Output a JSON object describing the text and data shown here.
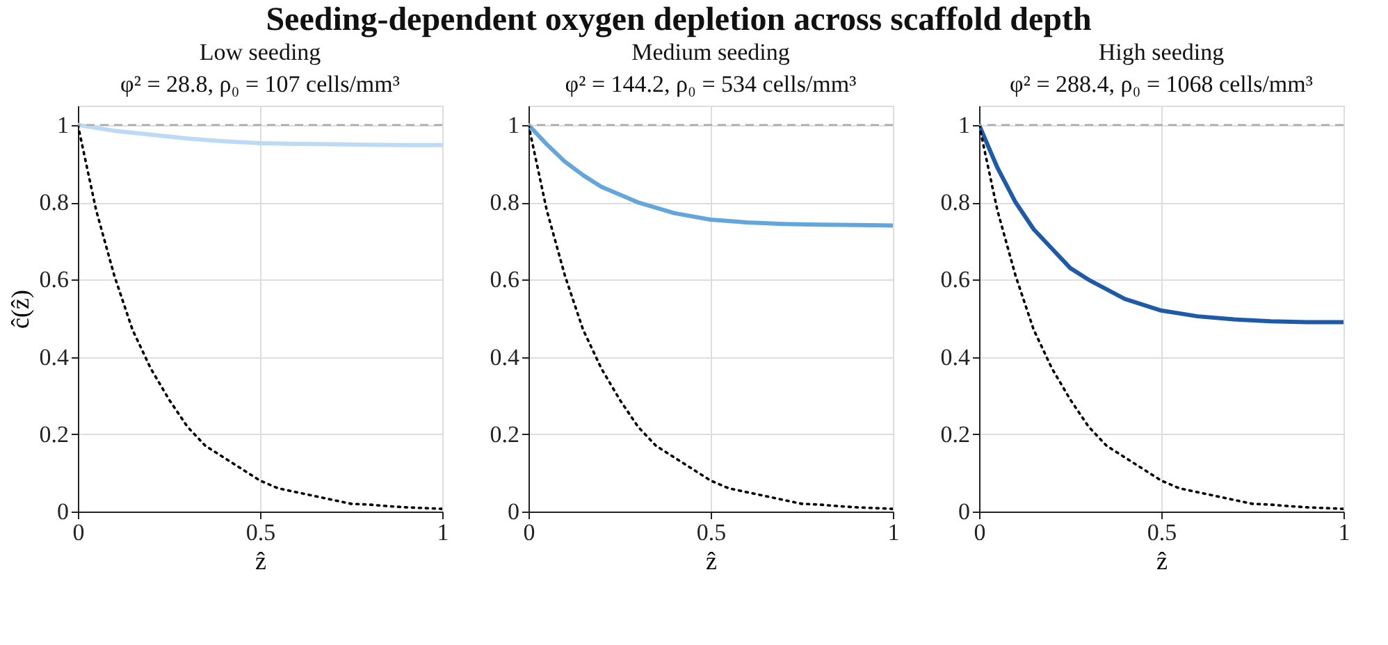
{
  "chart_data": [
    {
      "type": "line",
      "title": "Low seeding",
      "subtitle": "φ² = 28.8, ρ₀ = 107 cells/mm³",
      "xlabel": "ẑ",
      "ylabel": "ĉ(ẑ)",
      "annotations": [
        "Seeding-dependent oxygen depletion across scaffold depth"
      ],
      "xlim": [
        0,
        1
      ],
      "ylim": [
        0,
        1.05
      ],
      "xticks": [
        0,
        0.5,
        1
      ],
      "yticks": [
        0,
        0.2,
        0.4,
        0.6,
        0.8,
        1
      ],
      "grid": true,
      "ref_lines": [
        {
          "axis": "y",
          "value": 1,
          "label": null,
          "color": "#aaaaaa",
          "line_style": "dashed"
        }
      ],
      "series": [
        {
          "color": "#bcdaf5",
          "line_style": "solid",
          "x": [
            0,
            0.1,
            0.2,
            0.3,
            0.4,
            0.5,
            0.6,
            0.7,
            0.8,
            0.9,
            1
          ],
          "values": [
            1,
            0.985,
            0.975,
            0.965,
            0.958,
            0.953,
            0.951,
            0.95,
            0.949,
            0.948,
            0.948
          ]
        },
        {
          "color": "#000000",
          "line_style": "dotted",
          "x": [
            0,
            0.05,
            0.1,
            0.15,
            0.2,
            0.25,
            0.3,
            0.35,
            0.4,
            0.45,
            0.5,
            0.55,
            0.6,
            0.65,
            0.7,
            0.75,
            0.8,
            0.85,
            0.9,
            0.95,
            1
          ],
          "values": [
            1,
            0.78,
            0.61,
            0.47,
            0.37,
            0.29,
            0.22,
            0.17,
            0.14,
            0.11,
            0.08,
            0.06,
            0.05,
            0.04,
            0.03,
            0.02,
            0.018,
            0.014,
            0.011,
            0.009,
            0.007
          ]
        }
      ]
    },
    {
      "type": "line",
      "title": "Medium seeding",
      "subtitle": "φ² = 144.2, ρ₀ = 534 cells/mm³",
      "xlabel": "ẑ",
      "xlim": [
        0,
        1
      ],
      "ylim": [
        0,
        1.05
      ],
      "xticks": [
        0,
        0.5,
        1
      ],
      "yticks": [
        0,
        0.2,
        0.4,
        0.6,
        0.8,
        1
      ],
      "grid": true,
      "ref_lines": [
        {
          "axis": "y",
          "value": 1,
          "label": null,
          "color": "#aaaaaa",
          "line_style": "dashed"
        }
      ],
      "series": [
        {
          "color": "#63a6db",
          "line_style": "solid",
          "x": [
            0,
            0.05,
            0.1,
            0.15,
            0.2,
            0.3,
            0.4,
            0.5,
            0.6,
            0.7,
            0.8,
            0.9,
            1
          ],
          "values": [
            1,
            0.95,
            0.905,
            0.87,
            0.84,
            0.8,
            0.772,
            0.755,
            0.748,
            0.744,
            0.742,
            0.741,
            0.74
          ]
        },
        {
          "color": "#000000",
          "line_style": "dotted",
          "x": [
            0,
            0.05,
            0.1,
            0.15,
            0.2,
            0.25,
            0.3,
            0.35,
            0.4,
            0.45,
            0.5,
            0.55,
            0.6,
            0.65,
            0.7,
            0.75,
            0.8,
            0.85,
            0.9,
            0.95,
            1
          ],
          "values": [
            1,
            0.78,
            0.61,
            0.47,
            0.37,
            0.29,
            0.22,
            0.17,
            0.14,
            0.11,
            0.08,
            0.06,
            0.05,
            0.04,
            0.03,
            0.02,
            0.018,
            0.014,
            0.011,
            0.009,
            0.007
          ]
        }
      ]
    },
    {
      "type": "line",
      "title": "High seeding",
      "subtitle": "φ² = 288.4, ρ₀ = 1068 cells/mm³",
      "xlabel": "ẑ",
      "xlim": [
        0,
        1
      ],
      "ylim": [
        0,
        1.05
      ],
      "xticks": [
        0,
        0.5,
        1
      ],
      "yticks": [
        0,
        0.2,
        0.4,
        0.6,
        0.8,
        1
      ],
      "grid": true,
      "ref_lines": [
        {
          "axis": "y",
          "value": 1,
          "label": null,
          "color": "#aaaaaa",
          "line_style": "dashed"
        }
      ],
      "series": [
        {
          "color": "#1f5aa8",
          "line_style": "solid",
          "x": [
            0,
            0.05,
            0.1,
            0.15,
            0.2,
            0.25,
            0.3,
            0.4,
            0.5,
            0.6,
            0.7,
            0.8,
            0.9,
            1
          ],
          "values": [
            1,
            0.89,
            0.8,
            0.73,
            0.68,
            0.63,
            0.6,
            0.55,
            0.52,
            0.505,
            0.497,
            0.492,
            0.49,
            0.49
          ]
        },
        {
          "color": "#000000",
          "line_style": "dotted",
          "x": [
            0,
            0.05,
            0.1,
            0.15,
            0.2,
            0.25,
            0.3,
            0.35,
            0.4,
            0.45,
            0.5,
            0.55,
            0.6,
            0.65,
            0.7,
            0.75,
            0.8,
            0.85,
            0.9,
            0.95,
            1
          ],
          "values": [
            1,
            0.78,
            0.61,
            0.47,
            0.37,
            0.29,
            0.22,
            0.17,
            0.14,
            0.11,
            0.08,
            0.06,
            0.05,
            0.04,
            0.03,
            0.02,
            0.018,
            0.014,
            0.011,
            0.009,
            0.007
          ]
        }
      ]
    }
  ]
}
